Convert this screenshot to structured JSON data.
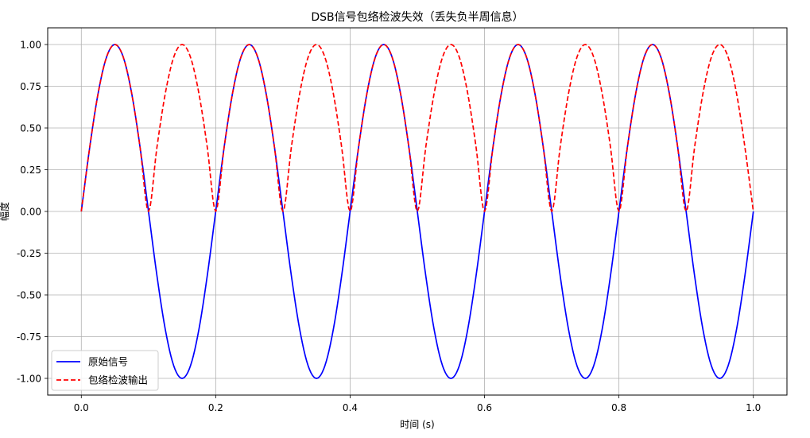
{
  "chart_data": {
    "type": "line",
    "title": "DSB信号包络检波失效（丢失负半周信息）",
    "xlabel": "时间 (s)",
    "ylabel": "幅度",
    "xlim": [
      -0.05,
      1.05
    ],
    "ylim": [
      -1.1,
      1.1
    ],
    "xticks": [
      0.0,
      0.2,
      0.4,
      0.6,
      0.8,
      1.0
    ],
    "xtick_labels": [
      "0.0",
      "0.2",
      "0.4",
      "0.6",
      "0.8",
      "1.0"
    ],
    "yticks": [
      -1.0,
      -0.75,
      -0.5,
      -0.25,
      0.0,
      0.25,
      0.5,
      0.75,
      1.0
    ],
    "ytick_labels": [
      "-1.00",
      "-0.75",
      "-0.50",
      "-0.25",
      "0.00",
      "0.25",
      "0.50",
      "0.75",
      "1.00"
    ],
    "grid": true,
    "legend_position": "lower-left",
    "series": [
      {
        "name": "原始信号",
        "color": "#0000ff",
        "style": "solid",
        "x": [
          0.0,
          0.0125,
          0.025,
          0.0375,
          0.05,
          0.0625,
          0.075,
          0.0875,
          0.1,
          0.1125,
          0.125,
          0.1375,
          0.15,
          0.1625,
          0.175,
          0.1875,
          0.2,
          0.2125,
          0.225,
          0.2375,
          0.25,
          0.2625,
          0.275,
          0.2875,
          0.3,
          0.3125,
          0.325,
          0.3375,
          0.35,
          0.3625,
          0.375,
          0.3875,
          0.4,
          0.4125,
          0.425,
          0.4375,
          0.45,
          0.4625,
          0.475,
          0.4875,
          0.5,
          0.5125,
          0.525,
          0.5375,
          0.55,
          0.5625,
          0.575,
          0.5875,
          0.6,
          0.6125,
          0.625,
          0.6375,
          0.65,
          0.6625,
          0.675,
          0.6875,
          0.7,
          0.7125,
          0.725,
          0.7375,
          0.75,
          0.7625,
          0.775,
          0.7875,
          0.8,
          0.8125,
          0.825,
          0.8375,
          0.85,
          0.8625,
          0.875,
          0.8875,
          0.9,
          0.9125,
          0.925,
          0.9375,
          0.95,
          0.9625,
          0.975,
          0.9875,
          1.0
        ],
        "y": [
          0.0,
          0.383,
          0.707,
          0.924,
          1.0,
          0.924,
          0.707,
          0.383,
          0.0,
          -0.383,
          -0.707,
          -0.924,
          -1.0,
          -0.924,
          -0.707,
          -0.383,
          0.0,
          0.383,
          0.707,
          0.924,
          1.0,
          0.924,
          0.707,
          0.383,
          0.0,
          -0.383,
          -0.707,
          -0.924,
          -1.0,
          -0.924,
          -0.707,
          -0.383,
          0.0,
          0.383,
          0.707,
          0.924,
          1.0,
          0.924,
          0.707,
          0.383,
          0.0,
          -0.383,
          -0.707,
          -0.924,
          -1.0,
          -0.924,
          -0.707,
          -0.383,
          0.0,
          0.383,
          0.707,
          0.924,
          1.0,
          0.924,
          0.707,
          0.383,
          0.0,
          -0.383,
          -0.707,
          -0.924,
          -1.0,
          -0.924,
          -0.707,
          -0.383,
          0.0,
          0.383,
          0.707,
          0.924,
          1.0,
          0.924,
          0.707,
          0.383,
          0.0,
          -0.383,
          -0.707,
          -0.924,
          -1.0,
          -0.924,
          -0.707,
          -0.383,
          0.0
        ]
      },
      {
        "name": "包络检波输出",
        "color": "#ff0000",
        "style": "dashed",
        "x": [
          0.0,
          0.0125,
          0.025,
          0.0375,
          0.05,
          0.0625,
          0.075,
          0.0875,
          0.1,
          0.1125,
          0.125,
          0.1375,
          0.15,
          0.1625,
          0.175,
          0.1875,
          0.2,
          0.2125,
          0.225,
          0.2375,
          0.25,
          0.2625,
          0.275,
          0.2875,
          0.3,
          0.3125,
          0.325,
          0.3375,
          0.35,
          0.3625,
          0.375,
          0.3875,
          0.4,
          0.4125,
          0.425,
          0.4375,
          0.45,
          0.4625,
          0.475,
          0.4875,
          0.5,
          0.5125,
          0.525,
          0.5375,
          0.55,
          0.5625,
          0.575,
          0.5875,
          0.6,
          0.6125,
          0.625,
          0.6375,
          0.65,
          0.6625,
          0.675,
          0.6875,
          0.7,
          0.7125,
          0.725,
          0.7375,
          0.75,
          0.7625,
          0.775,
          0.7875,
          0.8,
          0.8125,
          0.825,
          0.8375,
          0.85,
          0.8625,
          0.875,
          0.8875,
          0.9,
          0.9125,
          0.925,
          0.9375,
          0.95,
          0.9625,
          0.975,
          0.9875,
          1.0
        ],
        "y": [
          0.0,
          0.383,
          0.707,
          0.924,
          1.0,
          0.924,
          0.707,
          0.383,
          0.0,
          0.383,
          0.707,
          0.924,
          1.0,
          0.924,
          0.707,
          0.383,
          0.0,
          0.383,
          0.707,
          0.924,
          1.0,
          0.924,
          0.707,
          0.383,
          0.0,
          0.383,
          0.707,
          0.924,
          1.0,
          0.924,
          0.707,
          0.383,
          0.0,
          0.383,
          0.707,
          0.924,
          1.0,
          0.924,
          0.707,
          0.383,
          0.0,
          0.383,
          0.707,
          0.924,
          1.0,
          0.924,
          0.707,
          0.383,
          0.0,
          0.383,
          0.707,
          0.924,
          1.0,
          0.924,
          0.707,
          0.383,
          0.0,
          0.383,
          0.707,
          0.924,
          1.0,
          0.924,
          0.707,
          0.383,
          0.0,
          0.383,
          0.707,
          0.924,
          1.0,
          0.924,
          0.707,
          0.383,
          0.0,
          0.383,
          0.707,
          0.924,
          1.0,
          0.924,
          0.707,
          0.383,
          0.0
        ]
      }
    ]
  }
}
